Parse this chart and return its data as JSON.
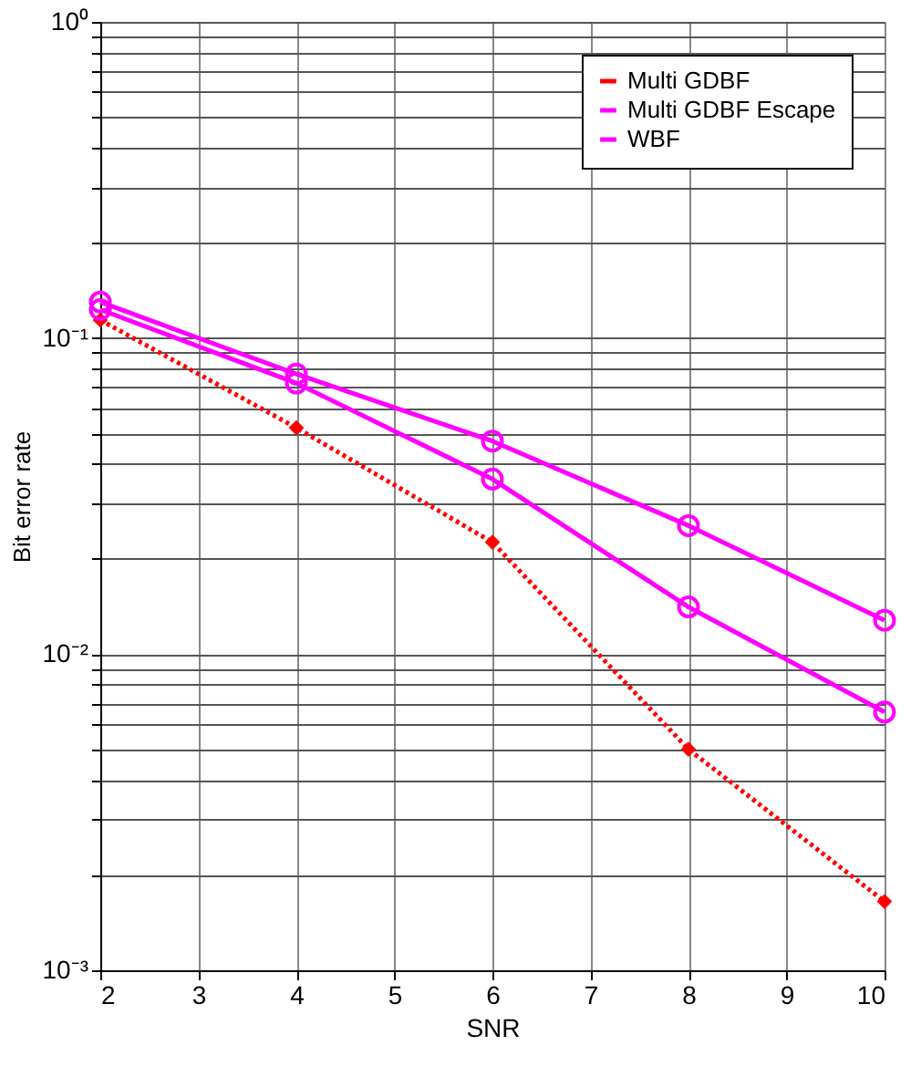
{
  "chart_data": {
    "type": "line",
    "xlabel": "SNR",
    "ylabel": "Bit error rate",
    "x": [
      2,
      4,
      6,
      8,
      10
    ],
    "series": [
      {
        "name": "Multi GDBF",
        "color": "#ff0000",
        "marker": "diamond",
        "line_style": "dotted",
        "values": [
          0.114,
          0.052,
          0.0226,
          0.005,
          0.00165
        ]
      },
      {
        "name": "Multi GDBF Escape",
        "color": "#ff00ff",
        "marker": "circle",
        "line_style": "solid",
        "values": [
          0.123,
          0.072,
          0.0358,
          0.0141,
          0.00656
        ]
      },
      {
        "name": "WBF",
        "color": "#ff00ff",
        "marker": "circle",
        "line_style": "solid",
        "values": [
          0.13,
          0.0769,
          0.0472,
          0.0255,
          0.0128
        ]
      }
    ],
    "log": "y",
    "xlim": [
      2,
      10
    ],
    "xticks": [
      2,
      3,
      4,
      5,
      6,
      7,
      8,
      9,
      10
    ],
    "ylim": [
      0.001,
      1
    ],
    "yticks": [
      {
        "value": 0.001,
        "label": "10⁻³"
      },
      {
        "value": 0.002,
        "label": null
      },
      {
        "value": 0.003,
        "label": null
      },
      {
        "value": 0.004,
        "label": null
      },
      {
        "value": 0.005,
        "label": null
      },
      {
        "value": 0.006,
        "label": null
      },
      {
        "value": 0.007,
        "label": null
      },
      {
        "value": 0.008,
        "label": null
      },
      {
        "value": 0.009,
        "label": null
      },
      {
        "value": 0.01,
        "label": "10⁻²"
      },
      {
        "value": 0.02,
        "label": null
      },
      {
        "value": 0.03,
        "label": null
      },
      {
        "value": 0.04,
        "label": null
      },
      {
        "value": 0.05,
        "label": null
      },
      {
        "value": 0.06,
        "label": null
      },
      {
        "value": 0.07,
        "label": null
      },
      {
        "value": 0.08,
        "label": null
      },
      {
        "value": 0.09,
        "label": null
      },
      {
        "value": 0.1,
        "label": "10⁻¹"
      },
      {
        "value": 0.2,
        "label": null
      },
      {
        "value": 0.3,
        "label": null
      },
      {
        "value": 0.4,
        "label": null
      },
      {
        "value": 0.5,
        "label": null
      },
      {
        "value": 0.6,
        "label": null
      },
      {
        "value": 0.7,
        "label": null
      },
      {
        "value": 0.8,
        "label": null
      },
      {
        "value": 0.9,
        "label": null
      },
      {
        "value": 1,
        "label": "10⁰"
      }
    ],
    "grid": true,
    "legend": "top right"
  }
}
